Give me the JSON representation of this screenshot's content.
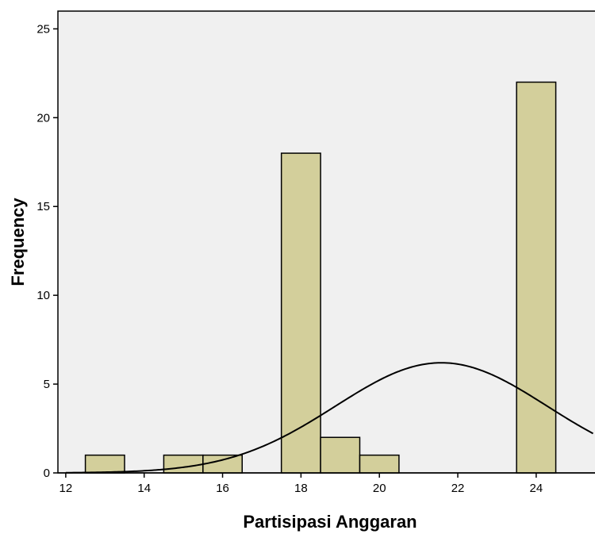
{
  "chart_data": {
    "type": "bar",
    "histogram": true,
    "xlabel": "Partisipasi Anggaran",
    "ylabel": "Frequency",
    "xlim": [
      11.8,
      25.5
    ],
    "ylim": [
      0,
      26
    ],
    "xticks": [
      "12",
      "14",
      "16",
      "18",
      "20",
      "22",
      "24"
    ],
    "yticks": [
      "0",
      "5",
      "10",
      "15",
      "20",
      "25"
    ],
    "bin_width": 1,
    "bins": [
      {
        "x": 13,
        "value": 1
      },
      {
        "x": 15,
        "value": 1
      },
      {
        "x": 16,
        "value": 1
      },
      {
        "x": 18,
        "value": 18
      },
      {
        "x": 19,
        "value": 2
      },
      {
        "x": 20,
        "value": 1
      },
      {
        "x": 24,
        "value": 22
      }
    ],
    "normal_curve": {
      "mean": 21.58,
      "peak": 6.2,
      "sd": 2.7
    },
    "grid": false,
    "colors": {
      "plot_bg": "#f0f0f0",
      "bar_fill": "#d3cf9b",
      "bar_stroke": "#000000",
      "curve": "#000000"
    }
  }
}
